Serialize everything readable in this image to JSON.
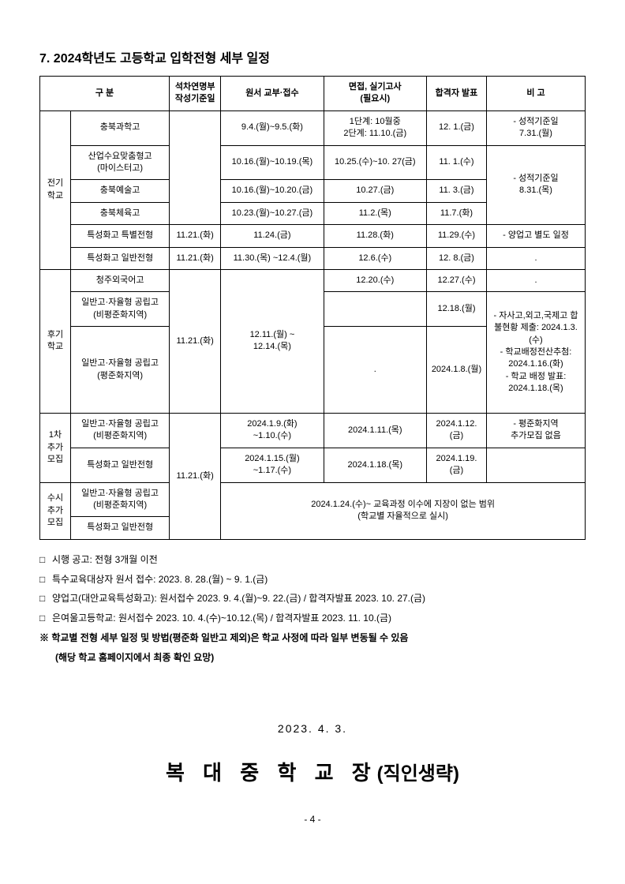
{
  "title": "7. 2024학년도 고등학교 입학전형 세부 일정",
  "headers": {
    "gubun": "구 분",
    "seokcha": "석차연명부\n작성기준일",
    "wonseo": "원서 교부·접수",
    "myeonjeop": "면접, 실기고사\n(필요시)",
    "hapgyeok": "합격자 발표",
    "bigo": "비 고"
  },
  "groups": {
    "jeongi": "전기\n학교",
    "hugi": "후기\n학교",
    "first": "1차\n추가\n모집",
    "susi": "수시\n추가\n모집"
  },
  "rows": {
    "r1": {
      "cat": "충북과학고",
      "date": "",
      "apply": "9.4.(월)~9.5.(화)",
      "exam": "1단계: 10월중\n2단계: 11.10.(금)",
      "pass": "12. 1.(금)",
      "note": "- 성적기준일\n7.31.(월)"
    },
    "r2": {
      "cat": "산업수요맞춤형고\n(마이스터고)",
      "apply": "10.16.(월)~10.19.(목)",
      "exam": "10.25.(수)~10. 27(금)",
      "pass": "11. 1.(수)",
      "note": "- 성적기준일\n8.31.(목)"
    },
    "r3": {
      "cat": "충북예술고",
      "apply": "10.16.(월)~10.20.(금)",
      "exam": "10.27.(금)",
      "pass": "11. 3.(금)"
    },
    "r4": {
      "cat": "충북체육고",
      "apply": "10.23.(월)~10.27.(금)",
      "exam": "11.2.(목)",
      "pass": "11.7.(화)"
    },
    "r5": {
      "cat": "특성화고 특별전형",
      "date": "11.21.(화)",
      "apply": "11.24.(금)",
      "exam": "11.28.(화)",
      "pass": "11.29.(수)",
      "note": "- 양업고 별도 일정"
    },
    "r6": {
      "cat": "특성화고 일반전형",
      "date": "11.21.(화)",
      "apply": "11.30.(목) ~12.4.(월)",
      "exam": "12.6.(수)",
      "pass": "12. 8.(금)",
      "note": "."
    },
    "r7": {
      "cat": "청주외국어고",
      "apply": "",
      "exam": "12.20.(수)",
      "pass": "12.27.(수)",
      "note": "."
    },
    "r8": {
      "cat": "일반고·자율형 공립고\n(비평준화지역)",
      "apply": "12.11.(월) ~\n12.14.(목)",
      "exam": "",
      "pass": "12.18.(월)"
    },
    "r9": {
      "cat": "일반고·자율형 공립고\n(평준화지역)",
      "exam": ".",
      "pass": "2024.1.8.(월)",
      "note": "- 자사고,외고,국제고 합불현황 제출: 2024.1.3.(수)\n- 학교배정전산추첨: 2024.1.16.(화)\n- 학교 배정 발표: 2024.1.18.(목)"
    },
    "r10": {
      "cat": "일반고·자율형 공립고\n(비평준화지역)",
      "apply": "2024.1.9.(화)\n~1.10.(수)",
      "exam": "2024.1.11.(목)",
      "pass": "2024.1.12.(금)",
      "note": "- 평준화지역\n추가모집 없음"
    },
    "r11": {
      "cat": "특성화고 일반전형",
      "apply": "2024.1.15.(월)\n~1.17.(수)",
      "exam": "2024.1.18.(목)",
      "pass": "2024.1.19.(금)"
    },
    "r12": {
      "cat": "일반고·자율형 공립고\n(비평준화지역)",
      "merged": "2024.1.24.(수)~ 교육과정 이수에 지장이 없는 범위\n(학교별 자율적으로 실시)"
    },
    "r13": {
      "cat": "특성화고 일반전형"
    },
    "hugiDate": "11.21.(화)",
    "firstDate": "11.21.(화)"
  },
  "notes": {
    "n1": "시행 공고: 전형 3개월 이전",
    "n2": "특수교육대상자 원서 접수: 2023. 8. 28.(월) ~ 9. 1.(금)",
    "n3": "양업고(대안교육특성화고): 원서접수 2023. 9. 4.(월)~9. 22.(금) / 합격자발표 2023. 10. 27.(금)",
    "n4": "은여울고등학교: 원서접수 2023. 10. 4.(수)~10.12.(목) / 합격자발표 2023. 11. 10.(금)",
    "n5a": "※ 학교별 전형 세부 일정 및 방법(평준화 일반고 제외)은 학교 사정에 따라 일부 변동될 수 있음",
    "n5b": "(해당 학교 홈페이지에서 최종 확인 요망)"
  },
  "footer": {
    "date": "2023. 4. 3.",
    "sign1": "복 대 중 학 교 장",
    "sign2": "(직인생략)",
    "page": "- 4 -"
  }
}
